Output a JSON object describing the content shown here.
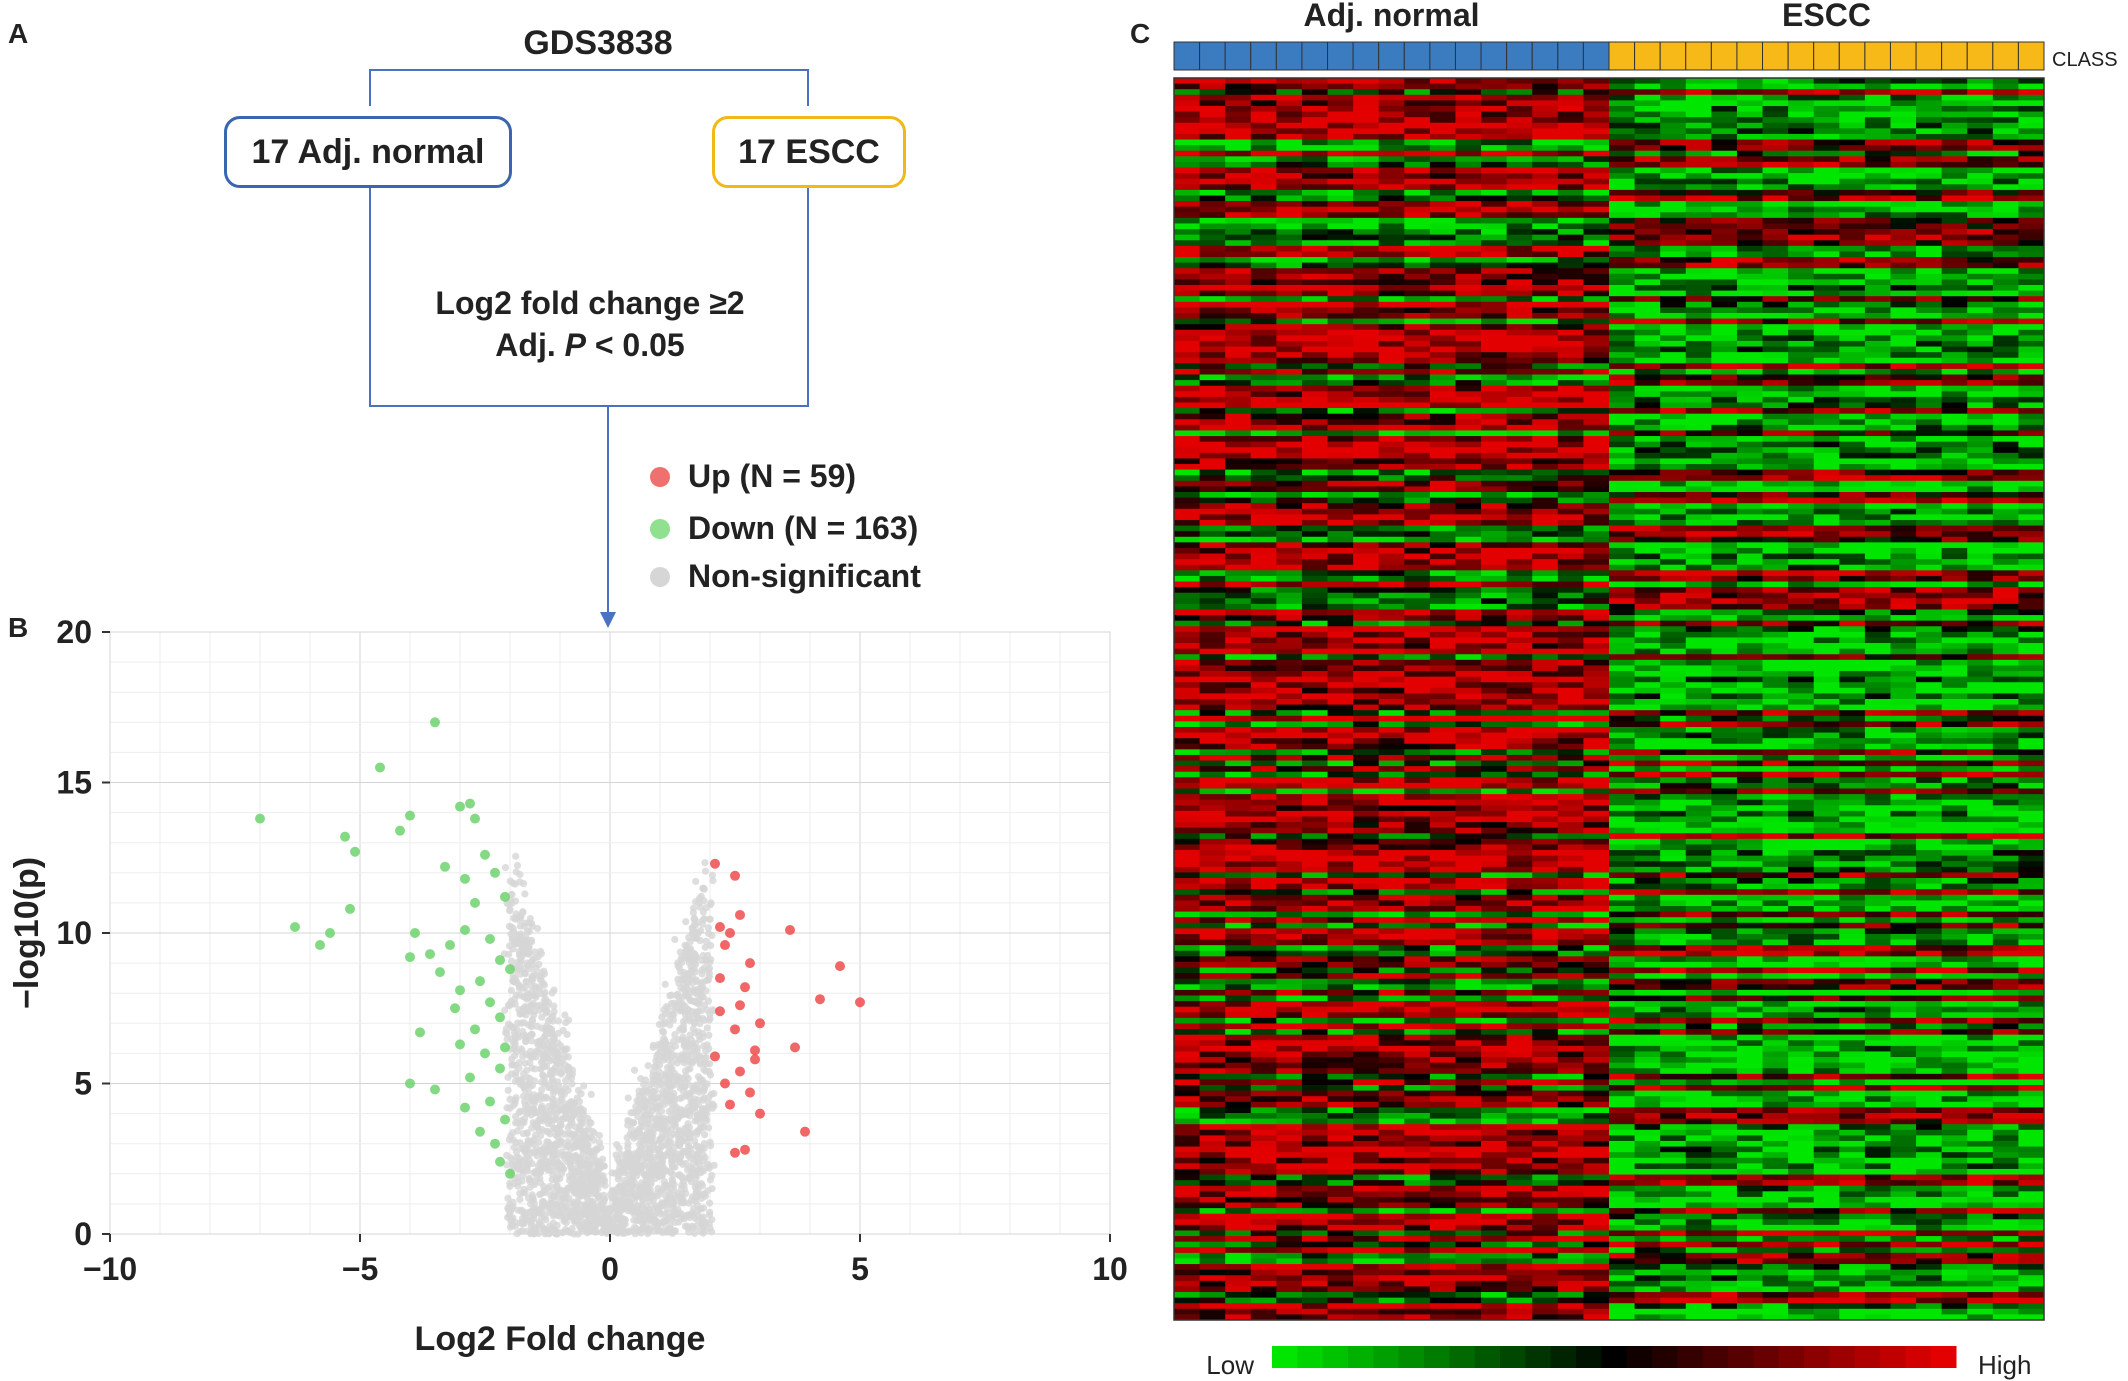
{
  "panels": {
    "a": "A",
    "b": "B",
    "c": "C"
  },
  "flow": {
    "dataset": "GDS3838",
    "left_box": "17 Adj. normal",
    "right_box": "17 ESCC",
    "criteria_line1": "Log2 fold change ≥2",
    "criteria_line2_prefix": "Adj. ",
    "criteria_line2_p": "P",
    "criteria_line2_suffix": " < 0.05",
    "colors": {
      "left_box": "#3a66b0",
      "right_box": "#f2b817",
      "connector": "#4a72c4"
    }
  },
  "legend": {
    "items": [
      {
        "label": "Up (N = 59)",
        "color": "#f07070"
      },
      {
        "label": "Down (N = 163)",
        "color": "#8fe08f"
      },
      {
        "label": "Non-significant",
        "color": "#d6d6d6"
      }
    ]
  },
  "chart_data": [
    {
      "type": "scatter",
      "xlabel": "Log2 Fold change",
      "ylabel": "−log10(p)",
      "xlim": [
        -10,
        10
      ],
      "ylim": [
        0,
        20
      ],
      "xticks": [
        -10,
        -5,
        0,
        5,
        10
      ],
      "xtick_labels": [
        "−10",
        "−5",
        "0",
        "5",
        "10"
      ],
      "yticks": [
        0,
        5,
        10,
        15,
        20
      ],
      "grid": true,
      "series": [
        {
          "name": "Up (N = 59)",
          "color": "#ee4b4b",
          "points": [
            [
              2.1,
              12.3
            ],
            [
              2.5,
              11.9
            ],
            [
              2.2,
              10.2
            ],
            [
              2.4,
              10.0
            ],
            [
              3.6,
              10.1
            ],
            [
              2.6,
              10.6
            ],
            [
              2.8,
              9.0
            ],
            [
              4.6,
              8.9
            ],
            [
              5.0,
              7.7
            ],
            [
              4.2,
              7.8
            ],
            [
              2.3,
              9.6
            ],
            [
              2.7,
              8.2
            ],
            [
              2.2,
              7.4
            ],
            [
              3.0,
              7.0
            ],
            [
              2.5,
              6.8
            ],
            [
              2.9,
              6.1
            ],
            [
              3.7,
              6.2
            ],
            [
              2.1,
              5.9
            ],
            [
              2.6,
              5.4
            ],
            [
              2.3,
              5.0
            ],
            [
              2.8,
              4.7
            ],
            [
              2.4,
              4.3
            ],
            [
              3.0,
              4.0
            ],
            [
              3.9,
              3.4
            ],
            [
              2.7,
              2.8
            ],
            [
              2.5,
              2.7
            ],
            [
              2.2,
              8.5
            ],
            [
              2.6,
              7.6
            ],
            [
              2.9,
              5.8
            ]
          ]
        },
        {
          "name": "Down (N = 163)",
          "color": "#6fd36f",
          "points": [
            [
              -7.0,
              13.8
            ],
            [
              -6.3,
              10.2
            ],
            [
              -5.8,
              9.6
            ],
            [
              -5.6,
              10.0
            ],
            [
              -5.2,
              10.8
            ],
            [
              -5.3,
              13.2
            ],
            [
              -5.1,
              12.7
            ],
            [
              -4.6,
              15.5
            ],
            [
              -4.0,
              13.9
            ],
            [
              -4.2,
              13.4
            ],
            [
              -3.5,
              17.0
            ],
            [
              -3.0,
              14.2
            ],
            [
              -2.8,
              14.3
            ],
            [
              -2.7,
              13.8
            ],
            [
              -3.3,
              12.2
            ],
            [
              -2.9,
              11.8
            ],
            [
              -2.5,
              12.6
            ],
            [
              -2.3,
              12.0
            ],
            [
              -2.1,
              11.2
            ],
            [
              -2.7,
              11.0
            ],
            [
              -3.9,
              10.0
            ],
            [
              -4.0,
              9.2
            ],
            [
              -3.6,
              9.3
            ],
            [
              -3.2,
              9.6
            ],
            [
              -2.9,
              10.1
            ],
            [
              -2.4,
              9.8
            ],
            [
              -2.2,
              9.1
            ],
            [
              -2.6,
              8.4
            ],
            [
              -3.4,
              8.7
            ],
            [
              -3.0,
              8.1
            ],
            [
              -2.4,
              7.7
            ],
            [
              -2.2,
              7.2
            ],
            [
              -2.7,
              6.8
            ],
            [
              -3.8,
              6.7
            ],
            [
              -3.0,
              6.3
            ],
            [
              -2.5,
              6.0
            ],
            [
              -2.2,
              5.5
            ],
            [
              -2.8,
              5.2
            ],
            [
              -4.0,
              5.0
            ],
            [
              -3.5,
              4.8
            ],
            [
              -2.4,
              4.4
            ],
            [
              -2.1,
              3.8
            ],
            [
              -2.6,
              3.4
            ],
            [
              -2.3,
              3.0
            ],
            [
              -2.0,
              2.0
            ],
            [
              -2.2,
              2.4
            ],
            [
              -3.1,
              7.5
            ],
            [
              -2.0,
              8.8
            ],
            [
              -2.1,
              6.2
            ],
            [
              -2.9,
              4.2
            ]
          ]
        }
      ],
      "gray_points": "dense band of several thousand non-significant points between x = −2 and 2"
    },
    {
      "type": "heatmap",
      "class_bar": {
        "label": "CLASS",
        "groups": [
          {
            "name": "Adj. normal",
            "count": 17,
            "color": "#3b7bbf"
          },
          {
            "name": "ESCC",
            "count": 17,
            "color": "#f7b917"
          }
        ]
      },
      "rows": 222,
      "columns": 34,
      "color_scale": {
        "low": "Low",
        "high": "High",
        "low_color": "#00e600",
        "mid_color": "#000000",
        "high_color": "#e30000"
      }
    }
  ]
}
